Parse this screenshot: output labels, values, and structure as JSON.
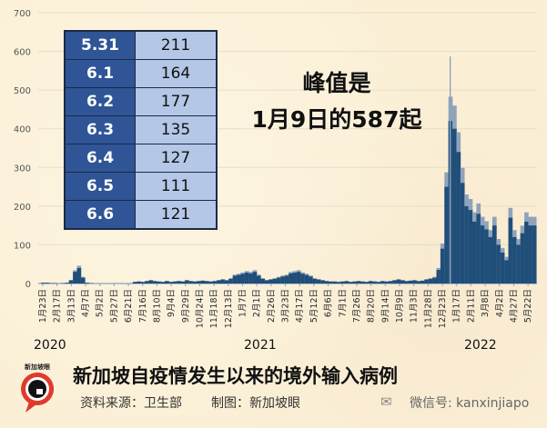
{
  "chart_data": {
    "type": "bar",
    "title": "新加坡自疫情发生以来的境外输入病例",
    "xlabel": "",
    "ylabel": "",
    "ylim": [
      0,
      700
    ],
    "yticks": [
      0,
      100,
      200,
      300,
      400,
      500,
      600,
      700
    ],
    "grid": true,
    "bar_color": "#1f4e79",
    "bar_highlight_color": "#8fa3bb",
    "x_tick_labels": [
      "1月23日",
      "2月17日",
      "3月13日",
      "4月7日",
      "5月2日",
      "5月27日",
      "6月21日",
      "7月16日",
      "8月10日",
      "9月4日",
      "9月29日",
      "10月24日",
      "11月18日",
      "12月13日",
      "1月7日",
      "2月1日",
      "2月26日",
      "3月23日",
      "4月17日",
      "5月12日",
      "6月6日",
      "7月1日",
      "7月26日",
      "8月20日",
      "9月14日",
      "10月9日",
      "11月3日",
      "11月28日",
      "12月23日",
      "1月17日",
      "2月11日",
      "3月8日",
      "4月2日",
      "4月27日",
      "5月22日"
    ],
    "year_labels": [
      "2020",
      "2021",
      "2022"
    ],
    "series": [
      {
        "points": [
          [
            "2020-01-23",
            2
          ],
          [
            "2020-01-30",
            2
          ],
          [
            "2020-02-06",
            1
          ],
          [
            "2020-02-13",
            1
          ],
          [
            "2020-02-20",
            0
          ],
          [
            "2020-02-27",
            1
          ],
          [
            "2020-03-05",
            2
          ],
          [
            "2020-03-12",
            8
          ],
          [
            "2020-03-19",
            30
          ],
          [
            "2020-03-26",
            40
          ],
          [
            "2020-04-02",
            15
          ],
          [
            "2020-04-09",
            2
          ],
          [
            "2020-04-16",
            1
          ],
          [
            "2020-04-23",
            0
          ],
          [
            "2020-04-30",
            0
          ],
          [
            "2020-05-07",
            0
          ],
          [
            "2020-05-14",
            0
          ],
          [
            "2020-05-21",
            0
          ],
          [
            "2020-05-28",
            0
          ],
          [
            "2020-06-04",
            0
          ],
          [
            "2020-06-11",
            0
          ],
          [
            "2020-06-18",
            0
          ],
          [
            "2020-06-25",
            0
          ],
          [
            "2020-07-02",
            4
          ],
          [
            "2020-07-09",
            5
          ],
          [
            "2020-07-16",
            4
          ],
          [
            "2020-07-23",
            6
          ],
          [
            "2020-07-30",
            8
          ],
          [
            "2020-08-06",
            6
          ],
          [
            "2020-08-13",
            5
          ],
          [
            "2020-08-20",
            4
          ],
          [
            "2020-08-27",
            6
          ],
          [
            "2020-09-03",
            4
          ],
          [
            "2020-09-10",
            5
          ],
          [
            "2020-09-17",
            6
          ],
          [
            "2020-09-24",
            5
          ],
          [
            "2020-10-01",
            8
          ],
          [
            "2020-10-08",
            6
          ],
          [
            "2020-10-15",
            5
          ],
          [
            "2020-10-22",
            6
          ],
          [
            "2020-10-29",
            7
          ],
          [
            "2020-11-05",
            6
          ],
          [
            "2020-11-12",
            5
          ],
          [
            "2020-11-19",
            6
          ],
          [
            "2020-11-26",
            8
          ],
          [
            "2020-12-03",
            10
          ],
          [
            "2020-12-10",
            8
          ],
          [
            "2020-12-17",
            12
          ],
          [
            "2020-12-24",
            20
          ],
          [
            "2020-12-31",
            22
          ],
          [
            "2021-01-07",
            25
          ],
          [
            "2021-01-14",
            28
          ],
          [
            "2021-01-21",
            26
          ],
          [
            "2021-01-28",
            30
          ],
          [
            "2021-02-04",
            20
          ],
          [
            "2021-02-11",
            12
          ],
          [
            "2021-02-18",
            8
          ],
          [
            "2021-02-25",
            10
          ],
          [
            "2021-03-04",
            12
          ],
          [
            "2021-03-11",
            15
          ],
          [
            "2021-03-18",
            18
          ],
          [
            "2021-03-25",
            20
          ],
          [
            "2021-04-01",
            26
          ],
          [
            "2021-04-08",
            28
          ],
          [
            "2021-04-15",
            30
          ],
          [
            "2021-04-22",
            25
          ],
          [
            "2021-04-29",
            22
          ],
          [
            "2021-05-06",
            18
          ],
          [
            "2021-05-13",
            12
          ],
          [
            "2021-05-20",
            10
          ],
          [
            "2021-05-27",
            8
          ],
          [
            "2021-06-03",
            6
          ],
          [
            "2021-06-10",
            5
          ],
          [
            "2021-06-17",
            5
          ],
          [
            "2021-06-24",
            4
          ],
          [
            "2021-07-01",
            5
          ],
          [
            "2021-07-08",
            6
          ],
          [
            "2021-07-15",
            4
          ],
          [
            "2021-07-22",
            5
          ],
          [
            "2021-07-29",
            6
          ],
          [
            "2021-08-05",
            5
          ],
          [
            "2021-08-12",
            4
          ],
          [
            "2021-08-19",
            6
          ],
          [
            "2021-08-26",
            5
          ],
          [
            "2021-09-02",
            4
          ],
          [
            "2021-09-09",
            6
          ],
          [
            "2021-09-16",
            5
          ],
          [
            "2021-09-23",
            6
          ],
          [
            "2021-09-30",
            8
          ],
          [
            "2021-10-07",
            10
          ],
          [
            "2021-10-14",
            8
          ],
          [
            "2021-10-21",
            6
          ],
          [
            "2021-10-28",
            7
          ],
          [
            "2021-11-04",
            8
          ],
          [
            "2021-11-11",
            6
          ],
          [
            "2021-11-18",
            7
          ],
          [
            "2021-11-25",
            10
          ],
          [
            "2021-12-02",
            12
          ],
          [
            "2021-12-09",
            15
          ],
          [
            "2021-12-16",
            35
          ],
          [
            "2021-12-23",
            90
          ],
          [
            "2021-12-30",
            250
          ],
          [
            "2022-01-06",
            420
          ],
          [
            "2022-01-09",
            587
          ],
          [
            "2022-01-13",
            400
          ],
          [
            "2022-01-20",
            340
          ],
          [
            "2022-01-27",
            260
          ],
          [
            "2022-02-03",
            200
          ],
          [
            "2022-02-10",
            190
          ],
          [
            "2022-02-17",
            160
          ],
          [
            "2022-02-24",
            180
          ],
          [
            "2022-03-03",
            150
          ],
          [
            "2022-03-10",
            140
          ],
          [
            "2022-03-17",
            120
          ],
          [
            "2022-03-24",
            150
          ],
          [
            "2022-03-31",
            100
          ],
          [
            "2022-04-07",
            80
          ],
          [
            "2022-04-14",
            60
          ],
          [
            "2022-04-21",
            170
          ],
          [
            "2022-04-28",
            120
          ],
          [
            "2022-05-05",
            100
          ],
          [
            "2022-05-12",
            130
          ],
          [
            "2022-05-19",
            160
          ],
          [
            "2022-05-26",
            150
          ],
          [
            "2022-06-02",
            150
          ]
        ]
      }
    ],
    "annotation": [
      "峰值是",
      "1月9日的587起"
    ]
  },
  "recent_table": [
    {
      "date": "5.31",
      "value": "211"
    },
    {
      "date": "6.1",
      "value": "164"
    },
    {
      "date": "6.2",
      "value": "177"
    },
    {
      "date": "6.3",
      "value": "135"
    },
    {
      "date": "6.4",
      "value": "127"
    },
    {
      "date": "6.5",
      "value": "111"
    },
    {
      "date": "6.6",
      "value": "121"
    }
  ],
  "footer": {
    "title": "新加坡自疫情发生以来的境外输入病例",
    "source": "资料来源：卫生部",
    "made_by": "制图：新加坡眼",
    "wechat": "微信号: kanxinjiapo",
    "logo_text": "新加坡眼"
  },
  "colors": {
    "table_key": "#2f5597",
    "table_value": "#b4c7e7",
    "logo_red": "#e03a2f"
  }
}
